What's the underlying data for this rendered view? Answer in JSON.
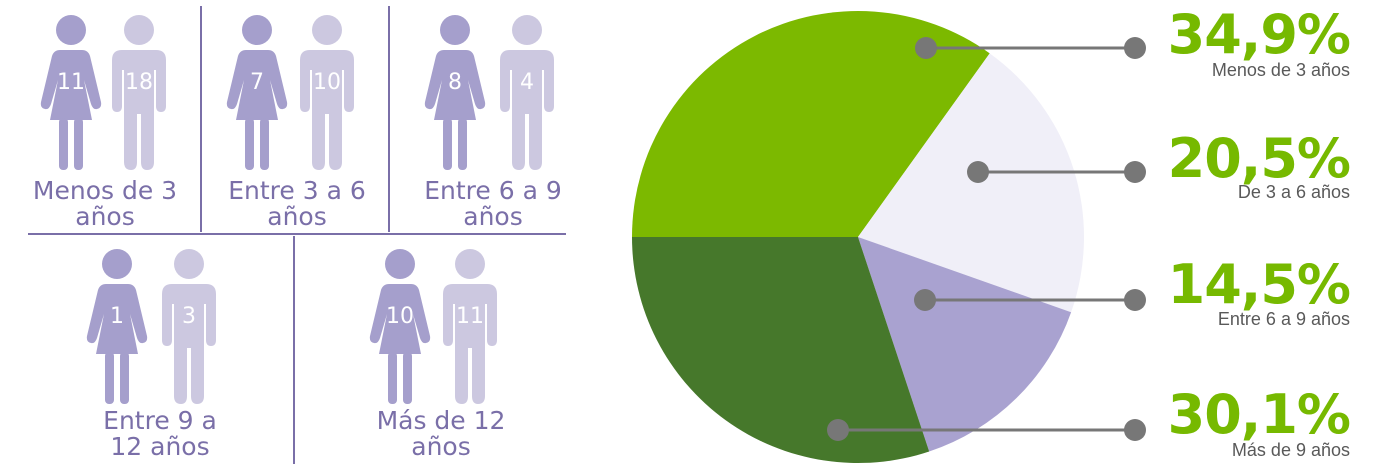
{
  "groups": [
    {
      "label": "Menos de 3 años",
      "female": "11",
      "male": "18"
    },
    {
      "label": "Entre 3 a 6 años",
      "female": "7",
      "male": "10"
    },
    {
      "label": "Entre 6 a 9 años",
      "female": "8",
      "male": "4"
    },
    {
      "label": "Entre 9 a 12 años",
      "female": "1",
      "male": "3"
    },
    {
      "label": "Más de 12 años",
      "female": "10",
      "male": "11"
    }
  ],
  "colors": {
    "female": "#a59fcc",
    "male": "#ccc8e0",
    "grid": "#7a6fa8",
    "connector": "#777777",
    "percent_text": "#76b900"
  },
  "chart_data": {
    "type": "pie",
    "slices": [
      {
        "label": "Menos de 3 años",
        "value": 34.9,
        "display": "34,9%",
        "color": "#7cb900"
      },
      {
        "label": "De 3 a 6 años",
        "value": 20.5,
        "display": "20,5%",
        "color": "#f0eff8"
      },
      {
        "label": "Entre 6 a 9 años",
        "value": 14.5,
        "display": "14,5%",
        "color": "#a9a2d0"
      },
      {
        "label": "Más de 9 años",
        "value": 30.1,
        "display": "30,1%",
        "color": "#46782b"
      }
    ]
  }
}
